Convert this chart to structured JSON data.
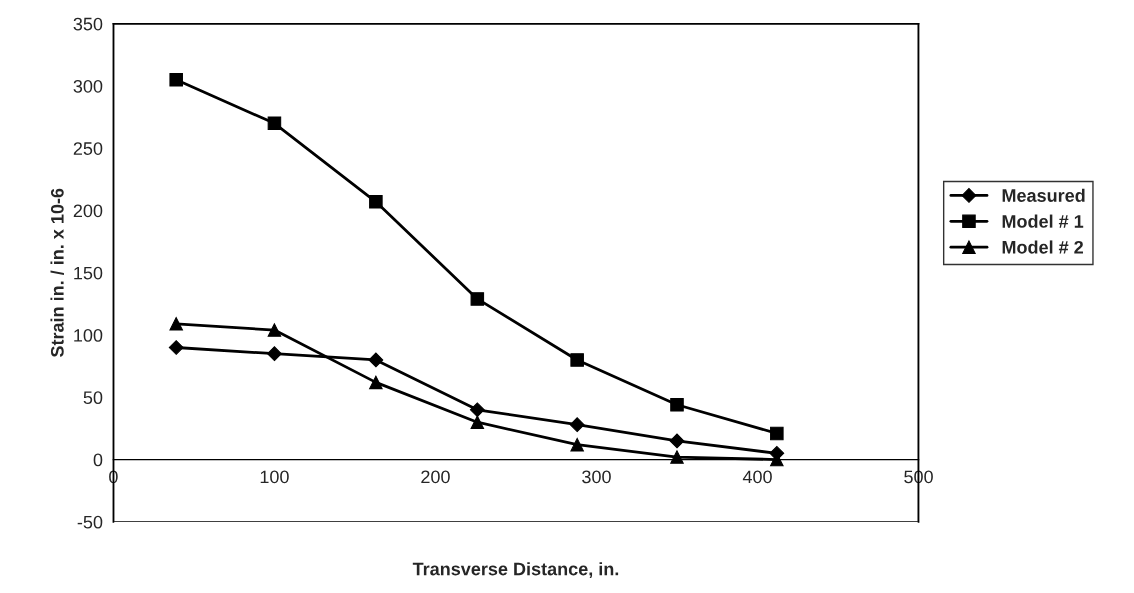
{
  "chart_data": {
    "type": "line",
    "xlabel": "Transverse Distance, in.",
    "ylabel": "Strain in. / in. x 10-6",
    "x": [
      39,
      100,
      163,
      226,
      288,
      350,
      412
    ],
    "series": [
      {
        "name": "Measured",
        "color": "#000000",
        "marker": "diamond",
        "values": [
          90,
          85,
          80,
          40,
          28,
          15,
          5
        ]
      },
      {
        "name": "Model # 1",
        "color": "#000000",
        "marker": "square",
        "values": [
          305,
          270,
          207,
          129,
          80,
          44,
          21
        ]
      },
      {
        "name": "Model # 2",
        "color": "#000000",
        "marker": "triangle",
        "values": [
          109,
          104,
          62,
          30,
          12,
          2,
          0
        ]
      }
    ],
    "xlim": [
      0,
      500
    ],
    "xticks": [
      0,
      100,
      200,
      300,
      400,
      500
    ],
    "ylim": [
      -50,
      350
    ],
    "yticks": [
      -50,
      0,
      50,
      100,
      150,
      200,
      250,
      300,
      350
    ],
    "grid": false,
    "legend": "right",
    "line_style": "solid"
  }
}
